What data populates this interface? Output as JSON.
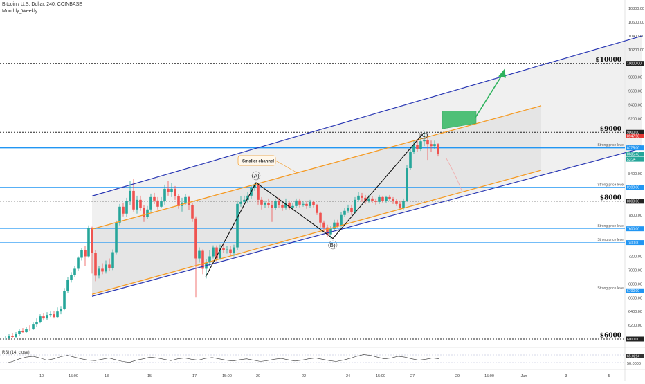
{
  "header": {
    "symbol": "Bitcoin / U.S. Dollar, 240, COINBASE",
    "subtitle": "Monthly_Weekly"
  },
  "colors": {
    "up": "#26a69a",
    "down": "#ef5350",
    "blue_channel": "#2a38b4",
    "orange_channel": "#f59a23",
    "level_blue": "#2196f3",
    "green_arrow": "#2db35d",
    "zone_fill": "#e8e8e8"
  },
  "chart_data": {
    "type": "candlestick",
    "y_axis": {
      "min": 5800,
      "max": 10900,
      "ticks": [
        6000,
        6200,
        6400,
        6600,
        6800,
        7000,
        7200,
        7400,
        7600,
        7800,
        8000,
        8200,
        8400,
        8600,
        8800,
        9000,
        9200,
        9400,
        9600,
        9800,
        10000,
        10200,
        10400,
        10600,
        10800
      ]
    },
    "x_axis": {
      "labels": [
        "10",
        "15:00",
        "13",
        "15",
        "17",
        "15:00",
        "20",
        "22",
        "24",
        "15:00",
        "27",
        "29",
        "15:00",
        "Jun",
        "3",
        "5"
      ]
    },
    "horizontal_levels": [
      {
        "price": 10000,
        "label": "$10000",
        "style": "dotted"
      },
      {
        "price": 9000,
        "label": "$9000",
        "style": "dotted"
      },
      {
        "price": 8000,
        "label": "$8000",
        "style": "dotted"
      },
      {
        "price": 6000,
        "label": "$6000",
        "style": "dotted"
      },
      {
        "price": 8775,
        "label": "Strong price level",
        "style": "blue"
      },
      {
        "price": 8200,
        "label": "Strong price level",
        "style": "blue"
      },
      {
        "price": 7600,
        "label": "Strong price level",
        "style": "blue"
      },
      {
        "price": 7400,
        "label": "Strong price level",
        "style": "blue"
      },
      {
        "price": 6700,
        "label": "Strong price level",
        "style": "blue"
      }
    ],
    "price_tags": [
      {
        "price": 10000,
        "text": "10000.00",
        "color": "#222222"
      },
      {
        "price": 9000,
        "text": "9000.00",
        "color": "#222222"
      },
      {
        "price": 8947.58,
        "text": "8947.58",
        "color": "#e53935"
      },
      {
        "price": 8775,
        "text": "8775.00",
        "color": "#2196f3"
      },
      {
        "price": 8685.43,
        "text": "8685.43",
        "color": "#26a69a"
      },
      {
        "price": 8610,
        "text": "53:34",
        "color": "#26a69a"
      },
      {
        "price": 8200,
        "text": "8200.00",
        "color": "#2196f3"
      },
      {
        "price": 8000,
        "text": "8000.00",
        "color": "#222222"
      },
      {
        "price": 7600,
        "text": "7600.00",
        "color": "#2196f3"
      },
      {
        "price": 7400,
        "text": "7400.00",
        "color": "#2196f3"
      },
      {
        "price": 6700,
        "text": "6700.00",
        "color": "#2196f3"
      },
      {
        "price": 6000,
        "text": "6000.00",
        "color": "#222222"
      }
    ],
    "annotations": {
      "smaller_channel": "Smaller channel",
      "wave_a": "(A)",
      "wave_b": "(B)",
      "wave_c": "(C)"
    },
    "rsi": {
      "label": "RSI (14, close)",
      "value_tag": "65.0214",
      "tag2": "50.0000"
    }
  }
}
